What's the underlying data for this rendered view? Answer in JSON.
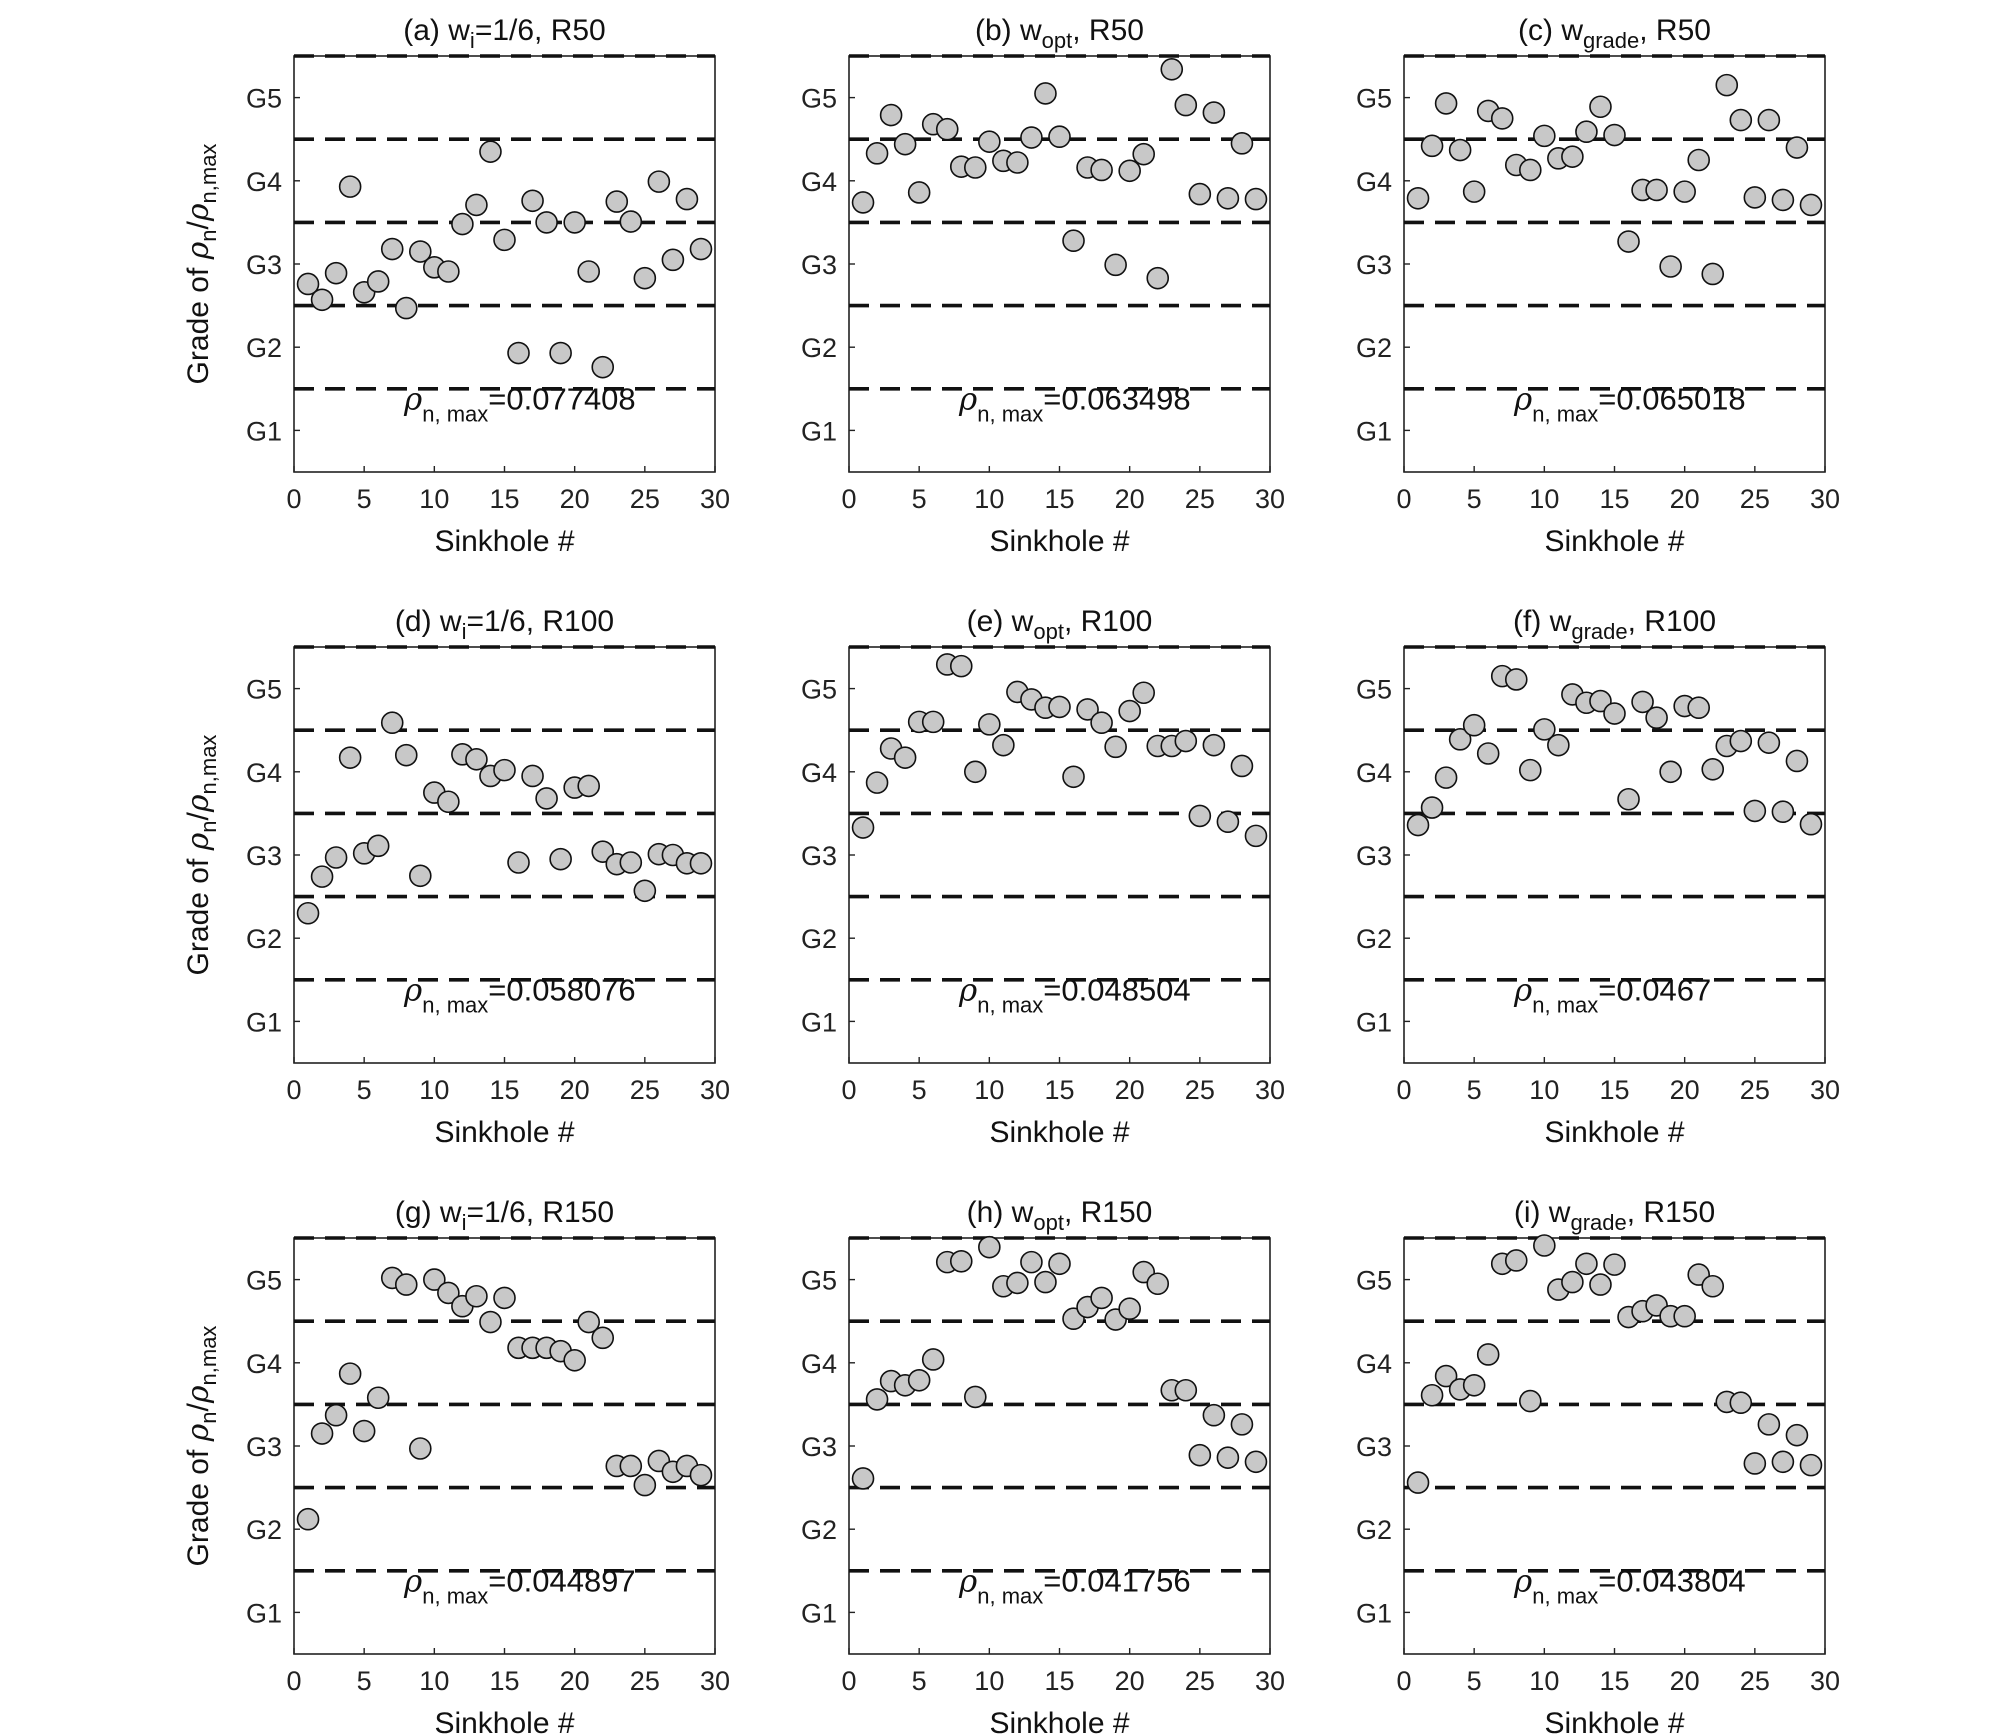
{
  "figure": {
    "ylabel_prefix": "Grade of ",
    "ylabel_rho": "ρ",
    "ylabel_sub1": "n",
    "ylabel_slash": "/",
    "ylabel_sub2": "n,max",
    "xlabel": "Sinkhole #",
    "annotation_rho": "ρ",
    "annotation_sub": "n, max",
    "annotation_eq": "=",
    "x_ticks": [
      0,
      5,
      10,
      15,
      20,
      25,
      30
    ],
    "y_tick_labels": [
      "G1",
      "G2",
      "G3",
      "G4",
      "G5"
    ],
    "colors": {
      "marker_fill": "#c8c8c8",
      "marker_edge": "#111111",
      "threshold_line": "#111111",
      "axes": "#222222"
    }
  },
  "chart_data": [
    {
      "type": "scatter",
      "title_main": "(a) w",
      "title_sub": "i",
      "title_rest": "=1/6, R50",
      "rho_max": "0.077408",
      "xlim": [
        0,
        30
      ],
      "ylim": [
        0.5,
        5.5
      ],
      "thresholds": [
        1.5,
        2.5,
        3.5,
        4.5,
        5.5
      ],
      "x": [
        1,
        2,
        3,
        4,
        5,
        6,
        7,
        8,
        9,
        10,
        11,
        12,
        13,
        14,
        15,
        16,
        17,
        18,
        19,
        20,
        21,
        22,
        23,
        24,
        25,
        26,
        27,
        28,
        29
      ],
      "y": [
        2.76,
        2.57,
        2.89,
        3.93,
        2.66,
        2.79,
        3.18,
        2.47,
        3.15,
        2.96,
        2.91,
        3.48,
        3.71,
        4.35,
        3.29,
        1.93,
        3.76,
        3.5,
        1.93,
        3.5,
        2.91,
        1.76,
        3.75,
        3.51,
        2.83,
        3.99,
        3.05,
        3.78,
        3.18
      ]
    },
    {
      "type": "scatter",
      "title_main": "(b) w",
      "title_sub": "opt",
      "title_rest": ", R50",
      "rho_max": "0.063498",
      "xlim": [
        0,
        30
      ],
      "ylim": [
        0.5,
        5.5
      ],
      "thresholds": [
        1.5,
        2.5,
        3.5,
        4.5,
        5.5
      ],
      "x": [
        1,
        2,
        3,
        4,
        5,
        6,
        7,
        8,
        9,
        10,
        11,
        12,
        13,
        14,
        15,
        16,
        17,
        18,
        19,
        20,
        21,
        22,
        23,
        24,
        25,
        26,
        27,
        28,
        29
      ],
      "y": [
        3.74,
        4.33,
        4.79,
        4.44,
        3.86,
        4.68,
        4.62,
        4.17,
        4.16,
        4.47,
        4.24,
        4.22,
        4.52,
        5.05,
        4.53,
        3.28,
        4.16,
        4.13,
        2.99,
        4.12,
        4.32,
        2.83,
        5.34,
        4.91,
        3.84,
        4.82,
        3.79,
        4.45,
        3.78
      ]
    },
    {
      "type": "scatter",
      "title_main": "(c) w",
      "title_sub": "grade",
      "title_rest": ", R50",
      "rho_max": "0.065018",
      "xlim": [
        0,
        30
      ],
      "ylim": [
        0.5,
        5.5
      ],
      "thresholds": [
        1.5,
        2.5,
        3.5,
        4.5,
        5.5
      ],
      "x": [
        1,
        2,
        3,
        4,
        5,
        6,
        7,
        8,
        9,
        10,
        11,
        12,
        13,
        14,
        15,
        16,
        17,
        18,
        19,
        20,
        21,
        22,
        23,
        24,
        25,
        26,
        27,
        28,
        29
      ],
      "y": [
        3.79,
        4.42,
        4.93,
        4.37,
        3.87,
        4.84,
        4.75,
        4.19,
        4.13,
        4.54,
        4.27,
        4.29,
        4.59,
        4.89,
        4.55,
        3.27,
        3.89,
        3.89,
        2.97,
        3.87,
        4.25,
        2.88,
        5.15,
        4.73,
        3.8,
        4.73,
        3.77,
        4.4,
        3.71
      ]
    },
    {
      "type": "scatter",
      "title_main": "(d) w",
      "title_sub": "i",
      "title_rest": "=1/6, R100",
      "rho_max": "0.058076",
      "xlim": [
        0,
        30
      ],
      "ylim": [
        0.5,
        5.5
      ],
      "thresholds": [
        1.5,
        2.5,
        3.5,
        4.5,
        5.5
      ],
      "x": [
        1,
        2,
        3,
        4,
        5,
        6,
        7,
        8,
        9,
        10,
        11,
        12,
        13,
        14,
        15,
        16,
        17,
        18,
        19,
        20,
        21,
        22,
        23,
        24,
        25,
        26,
        27,
        28,
        29
      ],
      "y": [
        2.3,
        2.74,
        2.97,
        4.17,
        3.02,
        3.11,
        4.59,
        4.2,
        2.75,
        3.75,
        3.64,
        4.21,
        4.15,
        3.95,
        4.02,
        2.91,
        3.95,
        3.68,
        2.95,
        3.81,
        3.83,
        3.04,
        2.89,
        2.91,
        2.57,
        3.01,
        3.0,
        2.9,
        2.9
      ]
    },
    {
      "type": "scatter",
      "title_main": "(e) w",
      "title_sub": "opt",
      "title_rest": ", R100",
      "rho_max": "0.048504",
      "xlim": [
        0,
        30
      ],
      "ylim": [
        0.5,
        5.5
      ],
      "thresholds": [
        1.5,
        2.5,
        3.5,
        4.5,
        5.5
      ],
      "x": [
        1,
        2,
        3,
        4,
        5,
        6,
        7,
        8,
        9,
        10,
        11,
        12,
        13,
        14,
        15,
        16,
        17,
        18,
        19,
        20,
        21,
        22,
        23,
        24,
        25,
        26,
        27,
        28,
        29
      ],
      "y": [
        3.33,
        3.87,
        4.28,
        4.17,
        4.6,
        4.6,
        5.29,
        5.27,
        4.0,
        4.57,
        4.32,
        4.96,
        4.87,
        4.77,
        4.78,
        3.94,
        4.75,
        4.59,
        4.3,
        4.73,
        4.95,
        4.31,
        4.31,
        4.37,
        3.47,
        4.32,
        3.4,
        4.07,
        3.23
      ]
    },
    {
      "type": "scatter",
      "title_main": "(f) w",
      "title_sub": "grade",
      "title_rest": ", R100",
      "rho_max": "0.0467",
      "xlim": [
        0,
        30
      ],
      "ylim": [
        0.5,
        5.5
      ],
      "thresholds": [
        1.5,
        2.5,
        3.5,
        4.5,
        5.5
      ],
      "x": [
        1,
        2,
        3,
        4,
        5,
        6,
        7,
        8,
        9,
        10,
        11,
        12,
        13,
        14,
        15,
        16,
        17,
        18,
        19,
        20,
        21,
        22,
        23,
        24,
        25,
        26,
        27,
        28,
        29
      ],
      "y": [
        3.36,
        3.57,
        3.93,
        4.39,
        4.56,
        4.22,
        5.15,
        5.11,
        4.02,
        4.51,
        4.32,
        4.93,
        4.83,
        4.85,
        4.7,
        3.67,
        4.84,
        4.65,
        4.0,
        4.79,
        4.77,
        4.03,
        4.31,
        4.37,
        3.53,
        4.35,
        3.52,
        4.13,
        3.37
      ]
    },
    {
      "type": "scatter",
      "title_main": "(g) w",
      "title_sub": "i",
      "title_rest": "=1/6, R150",
      "rho_max": "0.044897",
      "xlim": [
        0,
        30
      ],
      "ylim": [
        0.5,
        5.5
      ],
      "thresholds": [
        1.5,
        2.5,
        3.5,
        4.5,
        5.5
      ],
      "x": [
        1,
        2,
        3,
        4,
        5,
        6,
        7,
        8,
        9,
        10,
        11,
        12,
        13,
        14,
        15,
        16,
        17,
        18,
        19,
        20,
        21,
        22,
        23,
        24,
        25,
        26,
        27,
        28,
        29
      ],
      "y": [
        2.12,
        3.15,
        3.37,
        3.87,
        3.18,
        3.58,
        5.02,
        4.94,
        2.97,
        5.0,
        4.84,
        4.68,
        4.8,
        4.49,
        4.78,
        4.18,
        4.18,
        4.18,
        4.14,
        4.03,
        4.49,
        4.3,
        2.76,
        2.76,
        2.53,
        2.82,
        2.69,
        2.76,
        2.65
      ]
    },
    {
      "type": "scatter",
      "title_main": "(h) w",
      "title_sub": "opt",
      "title_rest": ", R150",
      "rho_max": "0.041756",
      "xlim": [
        0,
        30
      ],
      "ylim": [
        0.5,
        5.5
      ],
      "thresholds": [
        1.5,
        2.5,
        3.5,
        4.5,
        5.5
      ],
      "x": [
        1,
        2,
        3,
        4,
        5,
        6,
        7,
        8,
        9,
        10,
        11,
        12,
        13,
        14,
        15,
        16,
        17,
        18,
        19,
        20,
        21,
        22,
        23,
        24,
        25,
        26,
        27,
        28,
        29
      ],
      "y": [
        2.61,
        3.56,
        3.78,
        3.73,
        3.79,
        4.04,
        5.21,
        5.22,
        3.59,
        5.39,
        4.92,
        4.96,
        5.21,
        4.97,
        5.19,
        4.53,
        4.67,
        4.78,
        4.52,
        4.65,
        5.09,
        4.95,
        3.67,
        3.67,
        2.89,
        3.37,
        2.86,
        3.26,
        2.81
      ]
    },
    {
      "type": "scatter",
      "title_main": "(i) w",
      "title_sub": "grade",
      "title_rest": ", R150",
      "rho_max": "0.043804",
      "xlim": [
        0,
        30
      ],
      "ylim": [
        0.5,
        5.5
      ],
      "thresholds": [
        1.5,
        2.5,
        3.5,
        4.5,
        5.5
      ],
      "x": [
        1,
        2,
        3,
        4,
        5,
        6,
        7,
        8,
        9,
        10,
        11,
        12,
        13,
        14,
        15,
        16,
        17,
        18,
        19,
        20,
        21,
        22,
        23,
        24,
        25,
        26,
        27,
        28,
        29
      ],
      "y": [
        2.56,
        3.61,
        3.84,
        3.68,
        3.73,
        4.1,
        5.19,
        5.23,
        3.54,
        5.41,
        4.88,
        4.97,
        5.19,
        4.94,
        5.18,
        4.55,
        4.62,
        4.69,
        4.56,
        4.56,
        5.06,
        4.92,
        3.53,
        3.52,
        2.79,
        3.26,
        2.81,
        3.13,
        2.77
      ]
    }
  ]
}
